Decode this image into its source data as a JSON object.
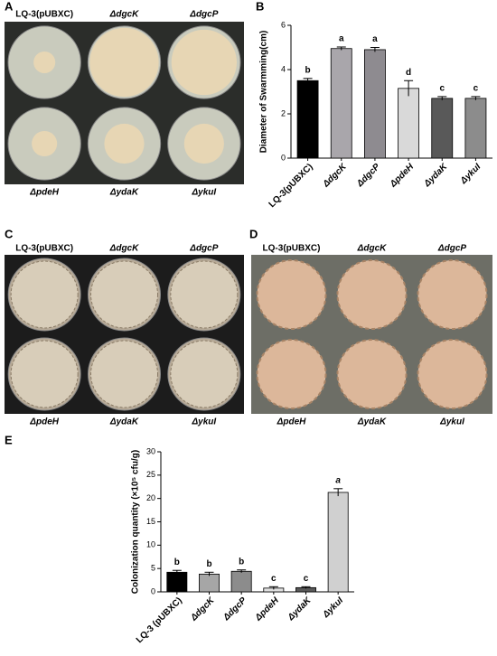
{
  "panels": [
    {
      "letter": "A",
      "labels": [
        "LQ-3(pUBXC)",
        "ΔdgcK",
        "ΔdgcP",
        "ΔpdeH",
        "ΔydaK",
        "ΔykuI"
      ]
    },
    {
      "letter": "C",
      "labels": [
        "LQ-3(pUBXC)",
        "ΔdgcK",
        "ΔdgcP",
        "ΔpdeH",
        "ΔydaK",
        "ΔykuI"
      ]
    },
    {
      "letter": "D",
      "labels": [
        "LQ-3(pUBXC)",
        "ΔdgcK",
        "ΔdgcP",
        "ΔpdeH",
        "ΔydaK",
        "ΔykuI"
      ]
    }
  ],
  "chart_data": [
    {
      "type": "bar",
      "letter": "B",
      "ylabel": "Diameter of Swarmming(cm)",
      "categories": [
        "LQ-3(pUBXC)",
        "ΔdgcK",
        "ΔdgcP",
        "ΔpdeH",
        "ΔydaK",
        "ΔykuI"
      ],
      "values": [
        3.5,
        4.95,
        4.9,
        3.15,
        2.7,
        2.7
      ],
      "errors": [
        0.1,
        0.07,
        0.1,
        0.35,
        0.08,
        0.08
      ],
      "annotations": [
        "b",
        "a",
        "a",
        "d",
        "c",
        "c"
      ],
      "colors": [
        "#000000",
        "#a9a6ab",
        "#8e8b90",
        "#d9d9d9",
        "#595959",
        "#8c8c8c"
      ],
      "ylim": [
        0,
        6
      ],
      "yticks": [
        0,
        2,
        4,
        6
      ]
    },
    {
      "type": "bar",
      "letter": "E",
      "ylabel": "Colonization quantity (×10⁵ cfu/g)",
      "categories": [
        "LQ-3 (pUBXC)",
        "ΔdgcK",
        "ΔdgcP",
        "ΔpdeH",
        "ΔydaK",
        "ΔykuI"
      ],
      "values": [
        4.2,
        3.8,
        4.4,
        0.8,
        0.9,
        21.3
      ],
      "errors": [
        0.4,
        0.4,
        0.3,
        0.3,
        0.2,
        0.8
      ],
      "annotations": [
        "b",
        "b",
        "b",
        "c",
        "c",
        "a"
      ],
      "colors": [
        "#000000",
        "#a6a6a6",
        "#8c8c8c",
        "#e0e0e0",
        "#595959",
        "#d0d0d0"
      ],
      "ylim": [
        0,
        30
      ],
      "yticks": [
        0,
        5,
        10,
        15,
        20,
        25,
        30
      ]
    }
  ]
}
